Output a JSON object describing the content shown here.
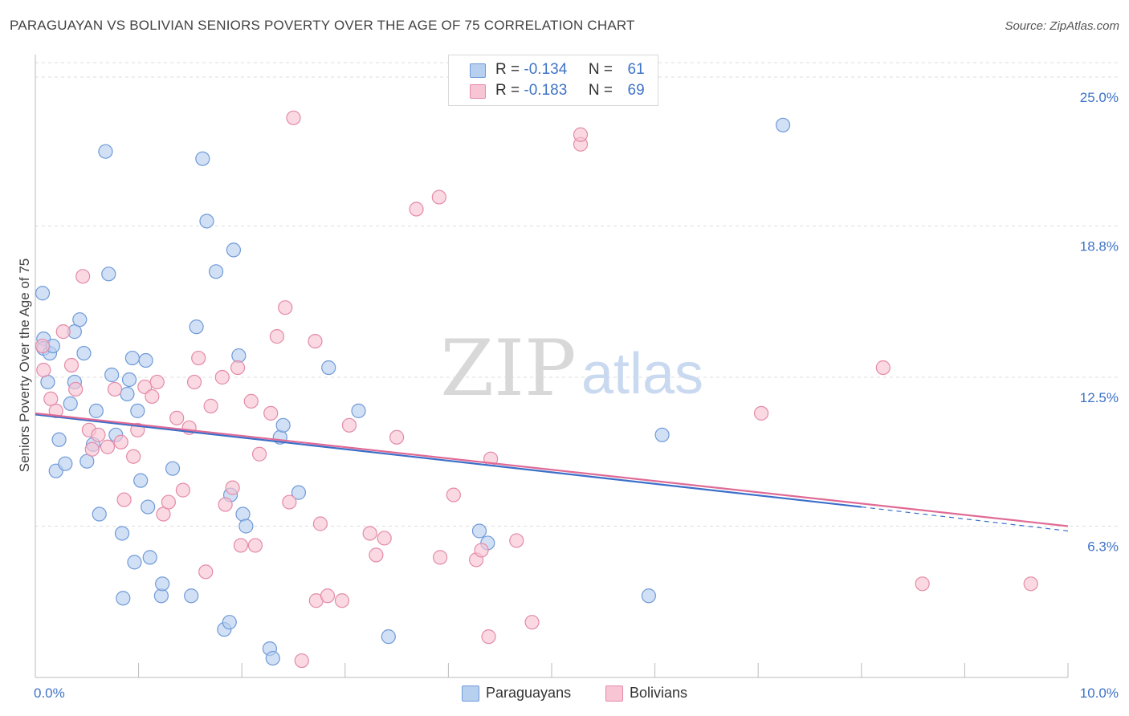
{
  "header": {
    "title": "PARAGUAYAN VS BOLIVIAN SENIORS POVERTY OVER THE AGE OF 75 CORRELATION CHART",
    "source": "Source: ZipAtlas.com"
  },
  "watermark": {
    "zip": "ZIP",
    "atlas": "atlas"
  },
  "legend": {
    "rows": [
      {
        "r_label": "R =",
        "r_value": "-0.134",
        "n_label": "N =",
        "n_value": "61"
      },
      {
        "r_label": "R =",
        "r_value": "-0.183",
        "n_label": "N =",
        "n_value": "69"
      }
    ]
  },
  "bottom_legend": {
    "paraguayans": "Paraguayans",
    "bolivians": "Bolivians"
  },
  "colors": {
    "blue_fill": "#b8d0f0",
    "blue_stroke": "#6f9ad8",
    "blue_line": "#3a6fc9",
    "pink_fill": "#f7c5d4",
    "pink_stroke": "#e48aa8",
    "pink_line": "#e06a95",
    "grid": "#dedede",
    "axis_text": "#3f73c7"
  },
  "chart_data": {
    "type": "scatter",
    "title": "PARAGUAYAN VS BOLIVIAN SENIORS POVERTY OVER THE AGE OF 75 CORRELATION CHART",
    "xlabel": "",
    "ylabel": "Seniors Poverty Over the Age of 75",
    "xlim": [
      0,
      10
    ],
    "ylim": [
      0,
      25.6
    ],
    "x_tick_labels": [
      "0.0%",
      "10.0%"
    ],
    "y_ticks": [
      6.3,
      12.5,
      18.8,
      25.0
    ],
    "y_tick_labels": [
      "6.3%",
      "12.5%",
      "18.8%",
      "25.0%"
    ],
    "series": [
      {
        "name": "Paraguayans",
        "r": -0.134,
        "n": 61,
        "trend": {
          "x0": 0.0,
          "y0": 10.95,
          "x1": 8.0,
          "y1": 7.1,
          "dash_to_x": 10.0,
          "dash_to_y": 6.1
        },
        "points": [
          [
            0.07,
            16.0
          ],
          [
            0.08,
            14.1
          ],
          [
            0.08,
            13.7
          ],
          [
            0.12,
            12.3
          ],
          [
            0.14,
            13.5
          ],
          [
            0.17,
            13.8
          ],
          [
            0.2,
            8.6
          ],
          [
            0.23,
            9.9
          ],
          [
            0.29,
            8.9
          ],
          [
            0.34,
            11.4
          ],
          [
            0.38,
            12.3
          ],
          [
            0.38,
            14.4
          ],
          [
            0.43,
            14.9
          ],
          [
            0.47,
            13.5
          ],
          [
            0.5,
            9.0
          ],
          [
            0.56,
            9.7
          ],
          [
            0.59,
            11.1
          ],
          [
            0.62,
            6.8
          ],
          [
            0.68,
            21.9
          ],
          [
            0.71,
            16.8
          ],
          [
            0.74,
            12.6
          ],
          [
            0.78,
            10.1
          ],
          [
            0.84,
            6.0
          ],
          [
            0.85,
            3.3
          ],
          [
            0.89,
            11.8
          ],
          [
            0.91,
            12.4
          ],
          [
            0.94,
            13.3
          ],
          [
            0.96,
            4.8
          ],
          [
            0.99,
            11.1
          ],
          [
            1.02,
            8.2
          ],
          [
            1.07,
            13.2
          ],
          [
            1.09,
            7.1
          ],
          [
            1.11,
            5.0
          ],
          [
            1.22,
            3.4
          ],
          [
            1.23,
            3.9
          ],
          [
            1.33,
            8.7
          ],
          [
            1.51,
            3.4
          ],
          [
            1.56,
            14.6
          ],
          [
            1.62,
            21.6
          ],
          [
            1.66,
            19.0
          ],
          [
            1.75,
            16.9
          ],
          [
            1.83,
            2.0
          ],
          [
            1.88,
            2.3
          ],
          [
            1.89,
            7.6
          ],
          [
            1.92,
            17.8
          ],
          [
            1.97,
            13.4
          ],
          [
            2.01,
            6.8
          ],
          [
            2.04,
            6.3
          ],
          [
            2.27,
            1.2
          ],
          [
            2.3,
            0.8
          ],
          [
            2.37,
            10.0
          ],
          [
            2.4,
            10.5
          ],
          [
            2.55,
            7.7
          ],
          [
            2.84,
            12.9
          ],
          [
            3.13,
            11.1
          ],
          [
            3.42,
            1.7
          ],
          [
            4.3,
            6.1
          ],
          [
            4.38,
            5.6
          ],
          [
            5.94,
            3.4
          ],
          [
            6.07,
            10.1
          ],
          [
            7.24,
            23.0
          ]
        ]
      },
      {
        "name": "Bolivians",
        "r": -0.183,
        "n": 69,
        "trend": {
          "x0": 0.0,
          "y0": 11.0,
          "x1": 10.0,
          "y1": 6.3
        },
        "points": [
          [
            0.07,
            13.8
          ],
          [
            0.08,
            12.8
          ],
          [
            0.15,
            11.6
          ],
          [
            0.2,
            11.1
          ],
          [
            0.27,
            14.4
          ],
          [
            0.35,
            13.0
          ],
          [
            0.39,
            12.0
          ],
          [
            0.46,
            16.7
          ],
          [
            0.52,
            10.3
          ],
          [
            0.55,
            9.5
          ],
          [
            0.61,
            10.1
          ],
          [
            0.7,
            9.6
          ],
          [
            0.77,
            12.0
          ],
          [
            0.83,
            9.8
          ],
          [
            0.86,
            7.4
          ],
          [
            0.95,
            9.2
          ],
          [
            0.99,
            10.3
          ],
          [
            1.06,
            12.1
          ],
          [
            1.13,
            11.7
          ],
          [
            1.18,
            12.3
          ],
          [
            1.24,
            6.8
          ],
          [
            1.29,
            7.3
          ],
          [
            1.37,
            10.8
          ],
          [
            1.43,
            7.8
          ],
          [
            1.49,
            10.4
          ],
          [
            1.54,
            12.3
          ],
          [
            1.58,
            13.3
          ],
          [
            1.65,
            4.4
          ],
          [
            1.7,
            11.3
          ],
          [
            1.81,
            12.5
          ],
          [
            1.84,
            7.2
          ],
          [
            1.91,
            7.9
          ],
          [
            1.96,
            12.9
          ],
          [
            1.99,
            5.5
          ],
          [
            2.09,
            11.5
          ],
          [
            2.13,
            5.5
          ],
          [
            2.17,
            9.3
          ],
          [
            2.28,
            11.0
          ],
          [
            2.34,
            14.2
          ],
          [
            2.42,
            15.4
          ],
          [
            2.46,
            7.3
          ],
          [
            2.5,
            23.3
          ],
          [
            2.58,
            0.7
          ],
          [
            2.71,
            14.0
          ],
          [
            2.72,
            3.2
          ],
          [
            2.76,
            6.4
          ],
          [
            2.83,
            3.4
          ],
          [
            2.97,
            3.2
          ],
          [
            3.04,
            10.5
          ],
          [
            3.24,
            6.0
          ],
          [
            3.3,
            5.1
          ],
          [
            3.38,
            5.8
          ],
          [
            3.5,
            10.0
          ],
          [
            3.69,
            19.5
          ],
          [
            3.91,
            20.0
          ],
          [
            3.92,
            5.0
          ],
          [
            4.05,
            7.6
          ],
          [
            4.27,
            4.9
          ],
          [
            4.32,
            5.3
          ],
          [
            4.39,
            1.7
          ],
          [
            4.41,
            9.1
          ],
          [
            4.66,
            5.7
          ],
          [
            4.81,
            2.3
          ],
          [
            5.28,
            22.2
          ],
          [
            5.28,
            22.6
          ],
          [
            7.03,
            11.0
          ],
          [
            8.21,
            12.9
          ],
          [
            8.59,
            3.9
          ],
          [
            9.64,
            3.9
          ]
        ]
      }
    ]
  }
}
